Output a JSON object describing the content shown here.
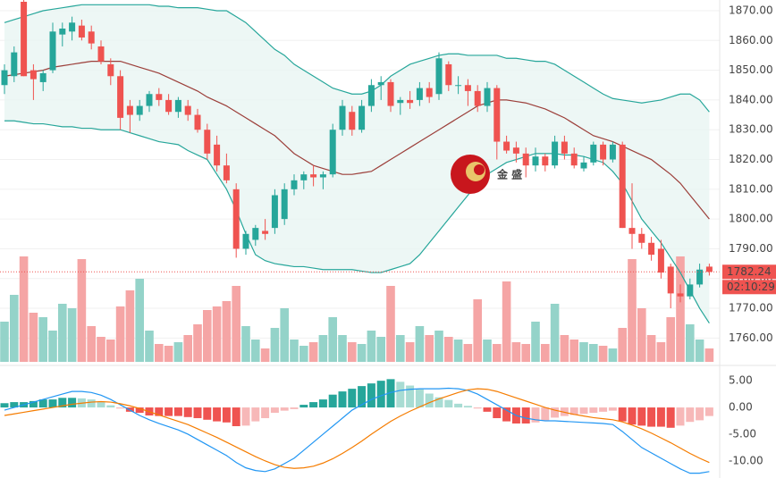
{
  "chart_data": [
    {
      "type": "candlestick",
      "annotation": "金 盛",
      "last_price": 1782.24,
      "countdown": "02:10:29",
      "ylim": [
        1752,
        1873.6
      ],
      "yticks": [
        {
          "value": 1870,
          "label": "1870.00"
        },
        {
          "value": 1860,
          "label": "1860.00"
        },
        {
          "value": 1850,
          "label": "1850.00"
        },
        {
          "value": 1840,
          "label": "1840.00"
        },
        {
          "value": 1830,
          "label": "1830.00"
        },
        {
          "value": 1820,
          "label": "1820.00"
        },
        {
          "value": 1810,
          "label": "1810.00"
        },
        {
          "value": 1800,
          "label": "1800.00"
        },
        {
          "value": 1790,
          "label": "1790.00"
        },
        {
          "value": 1780,
          "label": "1780.00"
        },
        {
          "value": 1770,
          "label": "1770.00"
        },
        {
          "value": 1760,
          "label": "1760.00"
        }
      ],
      "grid": true,
      "up_color": "#26a69a",
      "down_color": "#ef5350",
      "open": [
        1845,
        1848,
        1873,
        1850,
        1846,
        1850,
        1862,
        1863,
        1865,
        1863,
        1858,
        1852,
        1848,
        1838,
        1835,
        1838,
        1842,
        1840,
        1836,
        1838,
        1835,
        1830,
        1825,
        1818,
        1810,
        1790,
        1793,
        1796,
        1797,
        1800,
        1810,
        1813,
        1815,
        1814,
        1815,
        1830,
        1836,
        1830,
        1838,
        1845,
        1846,
        1839,
        1840,
        1840,
        1844,
        1842,
        1852,
        1845,
        1845,
        1843,
        1838,
        1844,
        1826,
        1824,
        1822,
        1818,
        1821,
        1818,
        1826,
        1822,
        1817,
        1819,
        1825,
        1820,
        1825,
        1797,
        1795,
        1792,
        1790,
        1784,
        1775,
        1774,
        1778,
        1784
      ],
      "high": [
        1852,
        1858,
        1874,
        1852,
        1850,
        1866,
        1866,
        1868,
        1867,
        1865,
        1860,
        1854,
        1850,
        1840,
        1840,
        1843,
        1844,
        1842,
        1841,
        1840,
        1837,
        1832,
        1828,
        1822,
        1812,
        1796,
        1798,
        1800,
        1810,
        1812,
        1815,
        1816,
        1818,
        1816,
        1832,
        1840,
        1838,
        1840,
        1847,
        1848,
        1847,
        1841,
        1843,
        1846,
        1846,
        1856,
        1853,
        1848,
        1847,
        1845,
        1846,
        1845,
        1828,
        1826,
        1824,
        1824,
        1822,
        1828,
        1828,
        1824,
        1821,
        1826,
        1826,
        1826,
        1826,
        1812,
        1797,
        1794,
        1793,
        1785,
        1778,
        1780,
        1785,
        1785
      ],
      "low": [
        1842,
        1846,
        1848,
        1840,
        1843,
        1849,
        1858,
        1860,
        1860,
        1857,
        1852,
        1845,
        1830,
        1829,
        1833,
        1836,
        1838,
        1835,
        1834,
        1833,
        1829,
        1820,
        1816,
        1812,
        1787,
        1788,
        1791,
        1793,
        1795,
        1798,
        1808,
        1810,
        1811,
        1810,
        1814,
        1828,
        1828,
        1829,
        1836,
        1840,
        1836,
        1835,
        1837,
        1838,
        1839,
        1840,
        1843,
        1842,
        1838,
        1836,
        1836,
        1820,
        1822,
        1819,
        1814,
        1816,
        1816,
        1817,
        1820,
        1817,
        1816,
        1818,
        1818,
        1819,
        1797,
        1790,
        1790,
        1786,
        1780,
        1770,
        1772,
        1773,
        1777,
        1781
      ],
      "close": [
        1850,
        1856,
        1848,
        1847,
        1849,
        1863,
        1864,
        1866,
        1861,
        1859,
        1853,
        1848,
        1834,
        1835,
        1838,
        1842,
        1840,
        1836,
        1840,
        1835,
        1830,
        1822,
        1818,
        1813,
        1790,
        1795,
        1797,
        1795,
        1808,
        1810,
        1813,
        1815,
        1814,
        1815,
        1830,
        1838,
        1830,
        1838,
        1845,
        1846,
        1838,
        1840,
        1839,
        1844,
        1841,
        1854,
        1845,
        1845,
        1843,
        1838,
        1844,
        1826,
        1823,
        1822,
        1818,
        1821,
        1818,
        1826,
        1822,
        1818,
        1819,
        1825,
        1820,
        1825,
        1797,
        1795,
        1792,
        1788,
        1782,
        1775,
        1774,
        1778,
        1783,
        1782.24
      ],
      "series": [
        {
          "color": "#26a69a",
          "values": [
            1866,
            1867,
            1868,
            1869,
            1870,
            1870.5,
            1871,
            1871.5,
            1872,
            1872,
            1872,
            1872,
            1872,
            1872,
            1872,
            1872,
            1871.5,
            1871.5,
            1871,
            1871,
            1871,
            1870.5,
            1870,
            1870,
            1868,
            1866,
            1863,
            1860,
            1857,
            1855,
            1852,
            1850,
            1848,
            1846,
            1844,
            1843,
            1842,
            1842,
            1843,
            1845,
            1848,
            1850,
            1852,
            1853,
            1854,
            1855,
            1855.5,
            1855.5,
            1855,
            1855,
            1855,
            1855,
            1854,
            1854,
            1853.5,
            1853,
            1853,
            1852,
            1850,
            1848,
            1846,
            1844,
            1842,
            1840.5,
            1840,
            1839.5,
            1839,
            1839.5,
            1840,
            1841,
            1842,
            1842,
            1840,
            1836
          ]
        },
        {
          "color": "#9c3f3a",
          "values": [
            1848,
            1848.5,
            1849,
            1849.5,
            1850,
            1851,
            1851.5,
            1852,
            1852.5,
            1853,
            1853,
            1853,
            1853,
            1852,
            1851,
            1850,
            1849,
            1847.5,
            1846,
            1844.5,
            1843,
            1841,
            1839.5,
            1838,
            1836,
            1834,
            1832,
            1830,
            1828,
            1825,
            1822,
            1820,
            1818,
            1817,
            1816,
            1815,
            1815,
            1815.5,
            1816,
            1818,
            1820,
            1822,
            1824,
            1826,
            1828,
            1830,
            1832,
            1834,
            1836,
            1838,
            1839,
            1840,
            1840,
            1839.5,
            1839,
            1838,
            1837,
            1835.5,
            1834,
            1832,
            1830,
            1828,
            1827,
            1826,
            1824.5,
            1823,
            1821.5,
            1820,
            1817.5,
            1815,
            1812,
            1808,
            1804,
            1800
          ]
        },
        {
          "color": "#26a69a",
          "values": [
            1833,
            1833,
            1832.5,
            1832,
            1832,
            1831.5,
            1831,
            1831,
            1830.5,
            1830.5,
            1830,
            1830,
            1830,
            1829,
            1828,
            1827,
            1826,
            1825.5,
            1825,
            1823,
            1821.5,
            1820,
            1815,
            1810,
            1803,
            1795,
            1788,
            1786,
            1785,
            1784.5,
            1784,
            1784,
            1783.5,
            1783,
            1783,
            1783,
            1783,
            1782.5,
            1782,
            1782,
            1783,
            1784,
            1785,
            1788,
            1792,
            1796,
            1800,
            1804,
            1808,
            1812,
            1815,
            1817,
            1819,
            1820,
            1821,
            1822,
            1822,
            1822,
            1821.5,
            1821.5,
            1821,
            1820,
            1819,
            1816,
            1812,
            1806,
            1800,
            1796,
            1792,
            1787,
            1782,
            1776,
            1770,
            1765
          ]
        }
      ]
    },
    {
      "type": "bar",
      "ylim": [
        0,
        130
      ],
      "up_color": "#94d3c9",
      "down_color": "#f5a5a5",
      "values": [
        45,
        75,
        118,
        55,
        50,
        35,
        65,
        60,
        115,
        40,
        28,
        25,
        62,
        80,
        93,
        35,
        20,
        18,
        22,
        30,
        42,
        58,
        62,
        68,
        85,
        40,
        25,
        15,
        38,
        60,
        25,
        18,
        22,
        30,
        50,
        30,
        22,
        20,
        35,
        28,
        85,
        30,
        22,
        40,
        30,
        35,
        28,
        25,
        20,
        70,
        25,
        20,
        90,
        22,
        20,
        45,
        20,
        65,
        30,
        25,
        22,
        20,
        18,
        15,
        38,
        115,
        60,
        30,
        22,
        50,
        118,
        42,
        25,
        15
      ]
    },
    {
      "type": "macd",
      "ylim": [
        -13.2,
        7.7
      ],
      "yticks": [
        {
          "value": 5,
          "label": "5.00"
        },
        {
          "value": 0,
          "label": "0.00"
        },
        {
          "value": -5,
          "label": "-5.00"
        },
        {
          "value": -10,
          "label": "-10.00"
        }
      ],
      "up_color": "#26a69a",
      "down_color": "#ef5350",
      "up_fade_color": "#a8dcd3",
      "down_fade_color": "#f7b8b8",
      "histogram": [
        0.8,
        1,
        1,
        1.2,
        1.5,
        1.5,
        1.8,
        1.8,
        1.7,
        1.5,
        1,
        0.4,
        -0.2,
        -0.8,
        -1,
        -1.5,
        -1.6,
        -1.6,
        -1.6,
        -1.8,
        -2,
        -2.3,
        -2.6,
        -2.8,
        -3.5,
        -3.4,
        -2.6,
        -2,
        -1,
        -0.6,
        -0.3,
        0.5,
        1,
        1.5,
        2.4,
        3,
        3.5,
        4,
        4.5,
        5,
        5.3,
        4.8,
        4.1,
        3.4,
        2.6,
        1.9,
        1.4,
        0.7,
        0.3,
        -0.2,
        -0.8,
        -2,
        -2.6,
        -3,
        -3,
        -2.8,
        -2.4,
        -1.9,
        -1.6,
        -1.4,
        -1.2,
        -1,
        -0.8,
        -0.6,
        -2.6,
        -3.2,
        -3.4,
        -3.6,
        -3.6,
        -3.8,
        -3.4,
        -2.7,
        -2.4,
        -1.6
      ],
      "series": [
        {
          "color": "#2196f3",
          "values": [
            -0.5,
            0,
            0.5,
            1,
            1.5,
            2,
            2.5,
            3,
            3,
            2.8,
            2.3,
            1.5,
            0.5,
            -0.5,
            -1.5,
            -2.3,
            -3,
            -3.6,
            -4.2,
            -5,
            -6,
            -7,
            -8,
            -9,
            -10.3,
            -11.3,
            -11.8,
            -12,
            -11.5,
            -10.5,
            -9.5,
            -8,
            -6.5,
            -5,
            -3.5,
            -2,
            -0.5,
            0.5,
            1.5,
            2.2,
            2.8,
            3.2,
            3.4,
            3.5,
            3.5,
            3.5,
            3.6,
            3.5,
            3.2,
            2.5,
            1.5,
            0.5,
            -0.5,
            -1.5,
            -2,
            -2.3,
            -2.5,
            -2.5,
            -2.6,
            -2.7,
            -2.8,
            -2.9,
            -3,
            -3.2,
            -4.5,
            -6,
            -7.5,
            -8.5,
            -9.5,
            -10.5,
            -11.5,
            -12.3,
            -12.3,
            -12
          ]
        },
        {
          "color": "#f57c00",
          "values": [
            -1.5,
            -1.2,
            -0.9,
            -0.6,
            -0.3,
            0,
            0.3,
            0.6,
            0.8,
            1,
            1.1,
            1,
            0.7,
            0.3,
            -0.2,
            -0.8,
            -1.4,
            -2,
            -2.6,
            -3.2,
            -4,
            -4.8,
            -5.6,
            -6.5,
            -7.4,
            -8.3,
            -9.2,
            -10,
            -10.7,
            -11.2,
            -11.4,
            -11.3,
            -11,
            -10.4,
            -9.6,
            -8.6,
            -7.5,
            -6.3,
            -5,
            -3.8,
            -2.6,
            -1.6,
            -0.7,
            0.1,
            0.9,
            1.6,
            2.2,
            2.8,
            3.3,
            3.5,
            3.4,
            3,
            2.4,
            1.8,
            1.2,
            0.6,
            0,
            -0.5,
            -0.9,
            -1.3,
            -1.6,
            -1.9,
            -2.1,
            -2.3,
            -2.7,
            -3.3,
            -4,
            -4.8,
            -5.7,
            -6.6,
            -7.6,
            -8.6,
            -9.5,
            -10.3
          ]
        }
      ]
    }
  ]
}
